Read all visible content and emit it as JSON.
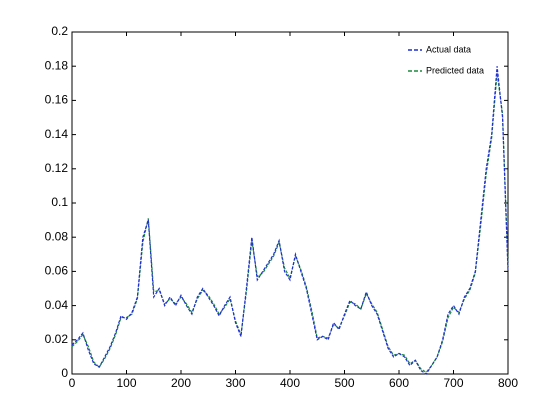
{
  "chart_data": {
    "type": "line",
    "x": [
      0,
      10,
      20,
      30,
      40,
      50,
      60,
      70,
      80,
      90,
      100,
      110,
      120,
      130,
      140,
      150,
      160,
      170,
      180,
      190,
      200,
      210,
      220,
      230,
      240,
      250,
      260,
      270,
      280,
      290,
      300,
      310,
      320,
      330,
      340,
      350,
      360,
      370,
      380,
      390,
      400,
      410,
      420,
      430,
      440,
      450,
      460,
      470,
      480,
      490,
      500,
      510,
      520,
      530,
      540,
      550,
      560,
      570,
      580,
      590,
      600,
      610,
      620,
      630,
      640,
      650,
      660,
      670,
      680,
      690,
      700,
      710,
      720,
      730,
      740,
      750,
      760,
      770,
      780,
      790,
      800
    ],
    "series": [
      {
        "name": "Actual data",
        "color": "#1f2fd0",
        "values": [
          0.017,
          0.02,
          0.024,
          0.014,
          0.006,
          0.004,
          0.01,
          0.016,
          0.024,
          0.034,
          0.032,
          0.036,
          0.045,
          0.08,
          0.09,
          0.045,
          0.05,
          0.04,
          0.045,
          0.04,
          0.046,
          0.04,
          0.035,
          0.045,
          0.05,
          0.045,
          0.04,
          0.034,
          0.04,
          0.045,
          0.03,
          0.022,
          0.05,
          0.08,
          0.055,
          0.06,
          0.065,
          0.07,
          0.078,
          0.06,
          0.055,
          0.07,
          0.06,
          0.05,
          0.035,
          0.02,
          0.022,
          0.02,
          0.03,
          0.026,
          0.035,
          0.043,
          0.04,
          0.038,
          0.048,
          0.04,
          0.035,
          0.025,
          0.015,
          0.01,
          0.012,
          0.01,
          0.005,
          0.008,
          0.002,
          0.0,
          0.005,
          0.01,
          0.02,
          0.035,
          0.04,
          0.035,
          0.045,
          0.05,
          0.06,
          0.09,
          0.12,
          0.14,
          0.18,
          0.15,
          0.06
        ]
      },
      {
        "name": "Predicted data",
        "color": "#1c8a3c",
        "values": [
          0.016,
          0.019,
          0.023,
          0.016,
          0.007,
          0.004,
          0.009,
          0.015,
          0.023,
          0.033,
          0.033,
          0.035,
          0.044,
          0.077,
          0.091,
          0.048,
          0.049,
          0.041,
          0.044,
          0.041,
          0.045,
          0.041,
          0.036,
          0.044,
          0.049,
          0.046,
          0.041,
          0.035,
          0.039,
          0.044,
          0.031,
          0.023,
          0.048,
          0.078,
          0.057,
          0.059,
          0.064,
          0.069,
          0.077,
          0.062,
          0.056,
          0.069,
          0.061,
          0.051,
          0.037,
          0.021,
          0.022,
          0.021,
          0.029,
          0.027,
          0.034,
          0.042,
          0.041,
          0.038,
          0.047,
          0.041,
          0.036,
          0.026,
          0.016,
          0.011,
          0.012,
          0.011,
          0.006,
          0.008,
          0.003,
          0.001,
          0.005,
          0.01,
          0.019,
          0.033,
          0.039,
          0.036,
          0.044,
          0.049,
          0.059,
          0.087,
          0.117,
          0.138,
          0.176,
          0.152,
          0.063
        ]
      }
    ],
    "xlim": [
      0,
      800
    ],
    "xticks": [
      0,
      100,
      200,
      300,
      400,
      500,
      600,
      700,
      800
    ],
    "ylim": [
      0,
      0.2
    ],
    "yticks": [
      0,
      0.02,
      0.04,
      0.06,
      0.08,
      0.1,
      0.12,
      0.14,
      0.16,
      0.18,
      0.2
    ],
    "legend": "upper right"
  }
}
